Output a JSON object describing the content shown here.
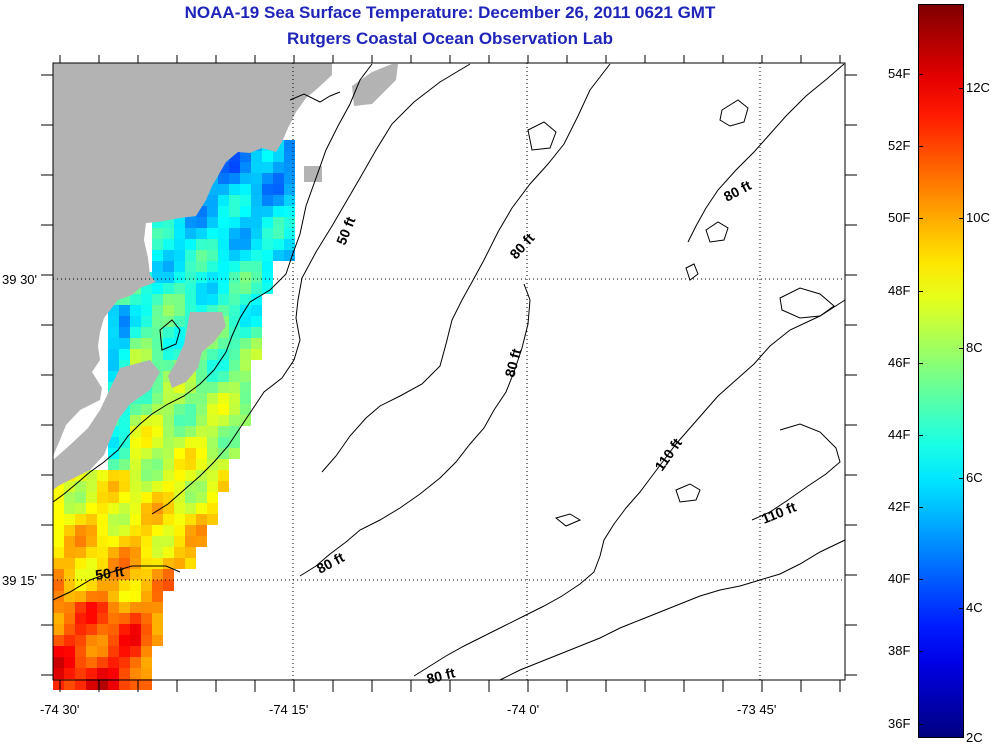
{
  "title": {
    "main": "NOAA-19 Sea Surface Temperature:  December 26, 2011 0621 GMT",
    "sub": "Rutgers Coastal Ocean Observation Lab"
  },
  "colors": {
    "title": "#1f25b8",
    "land": "#b3b3b3",
    "ocean_no_data": "#ffffff",
    "contour": "#000000"
  },
  "axes": {
    "x_ticks": [
      "-74 30'",
      "-74 15'",
      "-74 0'",
      "-73 45'"
    ],
    "y_ticks": [
      "39 30'",
      "39 15'"
    ]
  },
  "depth_labels": [
    "50 ft",
    "50 ft",
    "80 ft",
    "80 ft",
    "80 ft",
    "80 ft",
    "80 ft",
    "110 ft",
    "110 ft"
  ],
  "colorbar": {
    "fahrenheit": [
      "54F",
      "52F",
      "50F",
      "48F",
      "46F",
      "44F",
      "42F",
      "40F",
      "38F",
      "36F"
    ],
    "celsius": [
      "12C",
      "10C",
      "8C",
      "6C",
      "4C",
      "2C"
    ],
    "range_celsius": [
      2,
      13.3
    ],
    "colormap": "jet"
  }
}
